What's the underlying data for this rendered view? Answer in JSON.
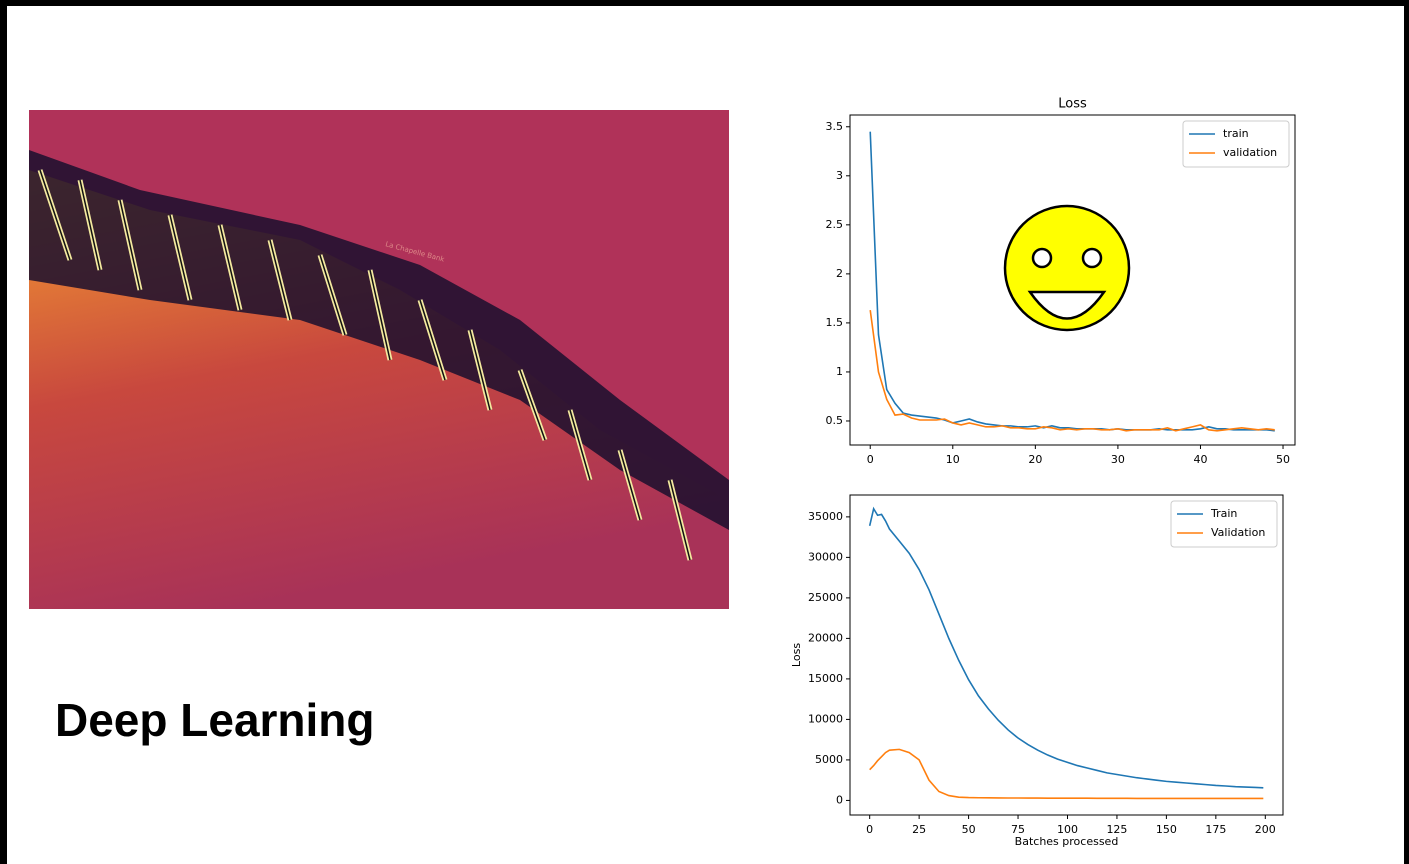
{
  "slide": {
    "title": "Deep Learning",
    "map_label": "La Chapelle Bank"
  },
  "chart_data": [
    {
      "type": "line",
      "title": "Loss",
      "legend": "upper right",
      "x": [
        0,
        1,
        2,
        3,
        4,
        5,
        6,
        7,
        8,
        9,
        10,
        11,
        12,
        13,
        14,
        15,
        16,
        17,
        18,
        19,
        20,
        21,
        22,
        23,
        24,
        25,
        26,
        27,
        28,
        29,
        30,
        31,
        32,
        33,
        34,
        35,
        36,
        37,
        38,
        39,
        40,
        41,
        42,
        43,
        44,
        45,
        46,
        47,
        48,
        49
      ],
      "xlim": [
        -2.45,
        51.45
      ],
      "xticks": [
        0,
        10,
        20,
        30,
        40,
        50
      ],
      "ylim": [
        0.255,
        3.62
      ],
      "yticks": [
        0.5,
        1.0,
        1.5,
        2.0,
        2.5,
        3.0,
        3.5
      ],
      "series": [
        {
          "name": "train",
          "color": "#1f77b4",
          "values": [
            3.45,
            1.38,
            0.82,
            0.68,
            0.58,
            0.56,
            0.55,
            0.54,
            0.53,
            0.51,
            0.48,
            0.5,
            0.52,
            0.49,
            0.47,
            0.46,
            0.45,
            0.45,
            0.44,
            0.44,
            0.45,
            0.43,
            0.45,
            0.43,
            0.43,
            0.42,
            0.42,
            0.42,
            0.42,
            0.41,
            0.42,
            0.41,
            0.41,
            0.41,
            0.41,
            0.42,
            0.41,
            0.41,
            0.41,
            0.41,
            0.42,
            0.44,
            0.42,
            0.42,
            0.41,
            0.41,
            0.41,
            0.41,
            0.41,
            0.4
          ]
        },
        {
          "name": "validation",
          "color": "#ff7f0e",
          "values": [
            1.63,
            1.0,
            0.72,
            0.56,
            0.57,
            0.53,
            0.51,
            0.51,
            0.51,
            0.52,
            0.48,
            0.46,
            0.48,
            0.46,
            0.44,
            0.44,
            0.45,
            0.43,
            0.43,
            0.42,
            0.42,
            0.44,
            0.43,
            0.41,
            0.42,
            0.41,
            0.42,
            0.42,
            0.41,
            0.41,
            0.42,
            0.4,
            0.41,
            0.41,
            0.41,
            0.41,
            0.43,
            0.4,
            0.42,
            0.44,
            0.46,
            0.41,
            0.4,
            0.41,
            0.42,
            0.43,
            0.42,
            0.41,
            0.42,
            0.41
          ]
        }
      ]
    },
    {
      "type": "line",
      "x_label": "Batches processed",
      "y_label": "Loss",
      "legend": "upper right",
      "x": [
        0,
        2,
        4,
        6,
        8,
        10,
        15,
        20,
        25,
        30,
        35,
        40,
        45,
        50,
        55,
        60,
        65,
        70,
        75,
        80,
        85,
        90,
        95,
        100,
        105,
        110,
        115,
        120,
        125,
        130,
        135,
        140,
        145,
        150,
        155,
        160,
        165,
        170,
        175,
        180,
        185,
        190,
        195,
        199
      ],
      "xlim": [
        -9.95,
        208.95
      ],
      "xticks": [
        0,
        25,
        50,
        75,
        100,
        125,
        150,
        175,
        200
      ],
      "ylim": [
        -1800,
        37700
      ],
      "yticks": [
        0,
        5000,
        10000,
        15000,
        20000,
        25000,
        30000,
        35000
      ],
      "series": [
        {
          "name": "Train",
          "color": "#1f77b4",
          "values": [
            33900,
            36000,
            35200,
            35300,
            34500,
            33500,
            32000,
            30500,
            28500,
            26000,
            23000,
            20000,
            17300,
            14900,
            12900,
            11300,
            9900,
            8700,
            7700,
            6900,
            6200,
            5600,
            5100,
            4700,
            4300,
            4000,
            3700,
            3400,
            3200,
            3000,
            2800,
            2650,
            2500,
            2350,
            2250,
            2150,
            2050,
            1950,
            1850,
            1780,
            1700,
            1650,
            1600,
            1550
          ]
        },
        {
          "name": "Validation",
          "color": "#ff7f0e",
          "values": [
            3800,
            4300,
            4900,
            5400,
            5900,
            6200,
            6300,
            5900,
            5000,
            2500,
            1100,
            600,
            400,
            350,
            330,
            320,
            310,
            300,
            300,
            290,
            290,
            280,
            280,
            270,
            270,
            270,
            260,
            260,
            260,
            260,
            250,
            250,
            250,
            250,
            250,
            250,
            250,
            250,
            250,
            250,
            250,
            250,
            250,
            250
          ]
        }
      ]
    }
  ]
}
